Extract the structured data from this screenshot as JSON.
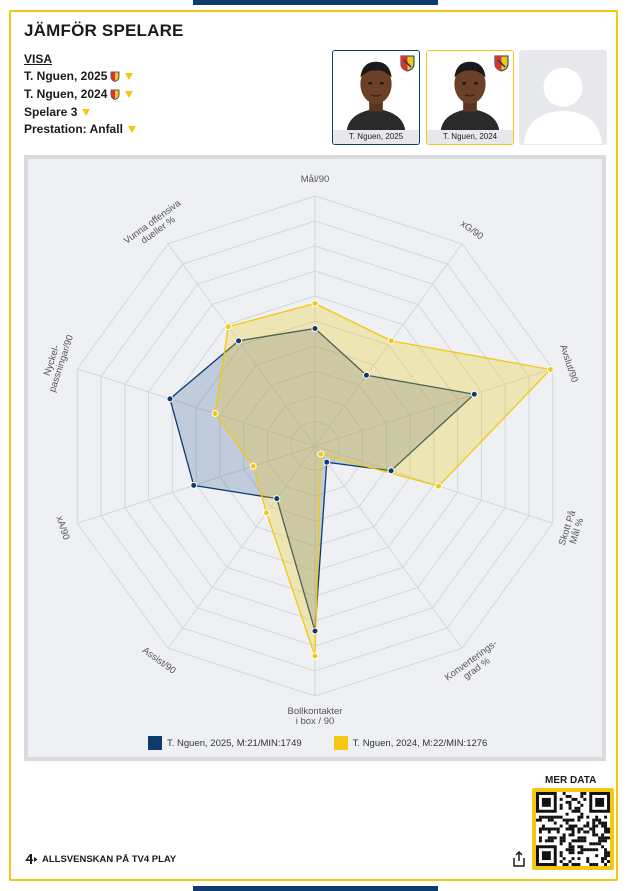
{
  "header": {
    "title": "JÄMFÖR SPELARE"
  },
  "selectors": {
    "visa_label": "VISA",
    "rows": [
      {
        "label": "T. Nguen, 2025",
        "has_badge": true
      },
      {
        "label": "T. Nguen, 2024",
        "has_badge": true
      },
      {
        "label": "Spelare 3",
        "has_badge": false
      },
      {
        "label": "Prestation: Anfall",
        "has_badge": false
      }
    ]
  },
  "cards": [
    {
      "caption": "T. Nguen, 2025",
      "border": "#0e3a6e"
    },
    {
      "caption": "T. Nguen, 2024",
      "border": "#f2c811"
    },
    {
      "caption": "",
      "border": "#e6e8eb"
    }
  ],
  "chart_data": {
    "type": "radar",
    "axes": [
      "Mål/90",
      "xG/90",
      "Avslut/90",
      "Skott På Mål %",
      "Konverterings-grad %",
      "Bollkontakter i box / 90",
      "Assist/90",
      "xA/90",
      "Nyckel-passningar/90",
      "Vunna offensiva dueller %"
    ],
    "axis_label_lines": [
      [
        "Mål/90"
      ],
      [
        "xG/90"
      ],
      [
        "Avslut/90"
      ],
      [
        "Skott På",
        "Mål %"
      ],
      [
        "Konverterings-",
        "grad %"
      ],
      [
        "Bollkontakter",
        "i box / 90"
      ],
      [
        "Assist/90"
      ],
      [
        "xA/90"
      ],
      [
        "Nyckel-",
        "passningar/90"
      ],
      [
        "Vunna offensiva",
        "dueller %"
      ]
    ],
    "rings": 10,
    "range": [
      0,
      1
    ],
    "series": [
      {
        "name": "T. Nguen, 2025, M:21/MIN:1749",
        "color": "#0e3a6e",
        "fill": "rgba(30,75,140,0.22)",
        "values": [
          0.47,
          0.35,
          0.67,
          0.32,
          0.08,
          0.74,
          0.26,
          0.51,
          0.61,
          0.52
        ]
      },
      {
        "name": "T. Nguen, 2024, M:22/MIN:1276",
        "color": "#f2c811",
        "fill": "rgba(242,200,17,0.28)",
        "values": [
          0.57,
          0.52,
          0.99,
          0.52,
          0.04,
          0.84,
          0.33,
          0.26,
          0.42,
          0.59
        ]
      }
    ],
    "grid": true,
    "legend_position": "bottom"
  },
  "footer": {
    "mer_data": "MER DATA",
    "brand": "ALLSVENSKAN PÅ TV4 PLAY"
  }
}
